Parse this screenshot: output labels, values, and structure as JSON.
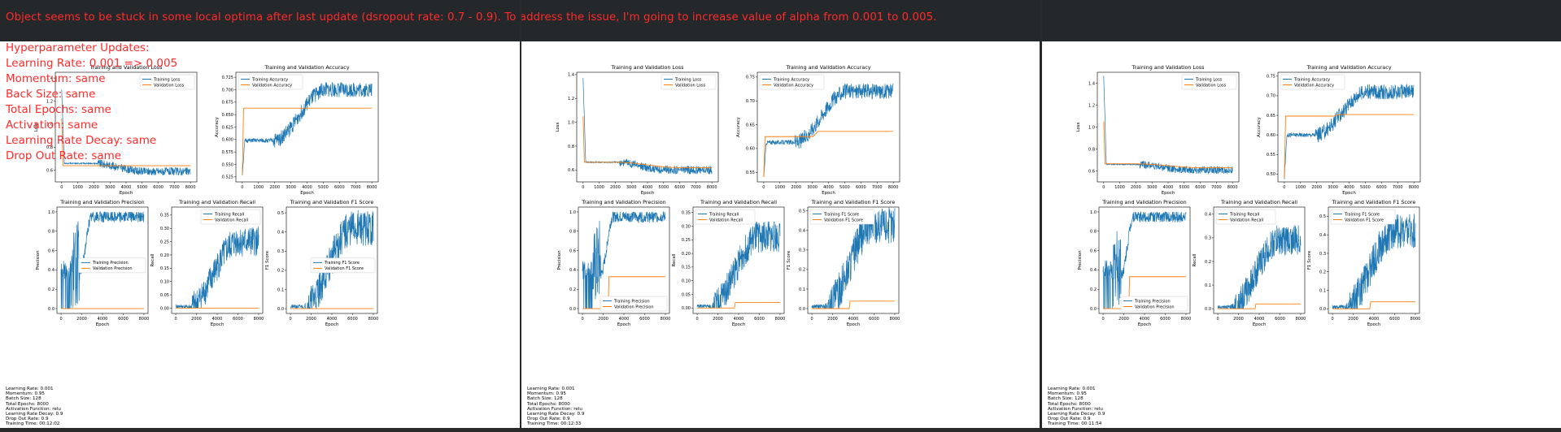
{
  "banner": "Object seems to be stuck in some local optima after last update (dsropout rate: 0.7 - 0.9). To address the issue, I'm going to increase value of alpha from 0.001 to 0.005.",
  "notes": [
    "Hyperparameter Updates:",
    "Learning Rate: 0.001 => 0.005",
    "Momentum: same",
    "Back Size: same",
    "Total Epochs: same",
    "Activation: same",
    "Learning Rate Decay: same",
    "Drop Out Rate: same"
  ],
  "colors": {
    "training": "#1f77b4",
    "validation": "#ff7f0e",
    "annotation": "#ff2a2a"
  },
  "panels": [
    {
      "info": [
        "Learning Rate: 0.001",
        "Momentum: 0.95",
        "Batch Size: 128",
        "Total Epochs: 8000",
        "Activation Function: relu",
        "Learning Rate Decay: 0.9",
        "Drop Out Rate: 0.9",
        "Training Time: 00:12:02"
      ],
      "charts": {
        "loss": {
          "title": "Training and Validation Loss",
          "xlabel": "Epoch",
          "ylabel": "Loss",
          "yticks": [
            "0.6",
            "0.8",
            "1.0",
            "1.2",
            "1.4"
          ],
          "xticks": [
            "0",
            "1000",
            "2000",
            "3000",
            "4000",
            "5000",
            "6000",
            "7000",
            "8000"
          ],
          "series": [
            "Training Loss",
            "Validation Loss"
          ],
          "val_start": 0.64,
          "val_end": 0.64,
          "tr_start": 1.3,
          "tr_plateau": 0.66,
          "tr_end": 0.59,
          "ylim": [
            0.5,
            1.45
          ],
          "legend": "upper right"
        },
        "accuracy": {
          "title": "Training and Validation Accuracy",
          "xlabel": "Epoch",
          "ylabel": "Accuracy",
          "yticks": [
            "0.525",
            "0.550",
            "0.575",
            "0.600",
            "0.625",
            "0.650",
            "0.675",
            "0.700",
            "0.725"
          ],
          "xticks": [
            "0",
            "1000",
            "2000",
            "3000",
            "4000",
            "5000",
            "6000",
            "7000",
            "8000"
          ],
          "series": [
            "Training Accuracy",
            "Validation Accuracy"
          ],
          "val_level": 0.663,
          "tr_start": 0.53,
          "tr_plateau": 0.598,
          "tr_end": 0.7,
          "ylim": [
            0.515,
            0.735
          ],
          "legend": "upper left"
        },
        "precision": {
          "title": "Training and Validation Precision",
          "xlabel": "Epoch",
          "ylabel": "Precision",
          "yticks": [
            "0.0",
            "0.2",
            "0.4",
            "0.6",
            "0.8",
            "1.0"
          ],
          "xticks": [
            "0",
            "2000",
            "4000",
            "6000",
            "8000"
          ],
          "series": [
            "Training Precision",
            "Validation Precision"
          ],
          "val_level": 0.0,
          "tr_end": 0.95,
          "ylim": [
            -0.05,
            1.05
          ],
          "legend": "center right"
        },
        "recall": {
          "title": "Training and Validation Recall",
          "xlabel": "Epoch",
          "ylabel": "Recall",
          "yticks": [
            "0.00",
            "0.05",
            "0.10",
            "0.15",
            "0.20",
            "0.25",
            "0.30",
            "0.35"
          ],
          "xticks": [
            "0",
            "2000",
            "4000",
            "6000",
            "8000"
          ],
          "series": [
            "Training Recall",
            "Validation Recall"
          ],
          "val_level": 0.0,
          "tr_end": 0.25,
          "ylim": [
            -0.02,
            0.38
          ],
          "legend": "upper right"
        },
        "f1": {
          "title": "Training and Validation F1 Score",
          "xlabel": "Epoch",
          "ylabel": "F1 Score",
          "yticks": [
            "0.0",
            "0.1",
            "0.2",
            "0.3",
            "0.4",
            "0.5"
          ],
          "xticks": [
            "0",
            "2000",
            "4000",
            "6000",
            "8000"
          ],
          "series": [
            "Training F1 Score",
            "Validation F1 Score"
          ],
          "val_level": 0.0,
          "tr_end": 0.42,
          "ylim": [
            -0.025,
            0.53
          ],
          "legend": "center right"
        }
      }
    },
    {
      "info": [
        "Learning Rate: 0.001",
        "Momentum: 0.95",
        "Batch Size: 128",
        "Total Epochs: 8000",
        "Activation Function: relu",
        "Learning Rate Decay: 0.9",
        "Drop Out Rate: 0.9",
        "Training Time: 00:12:33"
      ],
      "charts": {
        "loss": {
          "title": "Training and Validation Loss",
          "xlabel": "Epoch",
          "ylabel": "Loss",
          "yticks": [
            "0.6",
            "0.8",
            "1.0",
            "1.2",
            "1.4"
          ],
          "xticks": [
            "0",
            "1000",
            "2000",
            "3000",
            "4000",
            "5000",
            "6000",
            "7000",
            "8000"
          ],
          "series": [
            "Training Loss",
            "Validation Loss"
          ],
          "val_start": 0.665,
          "val_end": 0.62,
          "tr_start": 1.37,
          "tr_plateau": 0.665,
          "tr_end": 0.6,
          "ylim": [
            0.5,
            1.42
          ],
          "legend": "upper right"
        },
        "accuracy": {
          "title": "Training and Validation Accuracy",
          "xlabel": "Epoch",
          "ylabel": "Accuracy",
          "yticks": [
            "0.55",
            "0.60",
            "0.65",
            "0.70",
            "0.75"
          ],
          "xticks": [
            "0",
            "1000",
            "2000",
            "3000",
            "4000",
            "5000",
            "6000",
            "7000",
            "8000"
          ],
          "series": [
            "Training Accuracy",
            "Validation Accuracy"
          ],
          "val_level": 0.625,
          "val_step": 0.636,
          "tr_start": 0.54,
          "tr_plateau": 0.613,
          "tr_end": 0.72,
          "ylim": [
            0.53,
            0.76
          ],
          "legend": "upper left"
        },
        "precision": {
          "title": "Training and Validation Precision",
          "xlabel": "Epoch",
          "ylabel": "Precision",
          "yticks": [
            "0.0",
            "0.2",
            "0.4",
            "0.6",
            "0.8",
            "1.0"
          ],
          "xticks": [
            "0",
            "2000",
            "4000",
            "6000",
            "8000"
          ],
          "series": [
            "Training Precision",
            "Validation Precision"
          ],
          "val_level": 0.0,
          "val_step": 0.33,
          "tr_end": 0.95,
          "ylim": [
            -0.05,
            1.05
          ],
          "legend": "lower right"
        },
        "recall": {
          "title": "Training and Validation Recall",
          "xlabel": "Epoch",
          "ylabel": "Recall",
          "yticks": [
            "0.00",
            "0.05",
            "0.10",
            "0.15",
            "0.20",
            "0.25",
            "0.30",
            "0.35"
          ],
          "xticks": [
            "0",
            "2000",
            "4000",
            "6000",
            "8000"
          ],
          "series": [
            "Training Recall",
            "Validation Recall"
          ],
          "val_level": 0.0,
          "val_step": 0.02,
          "tr_end": 0.26,
          "ylim": [
            -0.02,
            0.37
          ],
          "legend": "upper left"
        },
        "f1": {
          "title": "Training and Validation F1 Score",
          "xlabel": "Epoch",
          "ylabel": "F1 Score",
          "yticks": [
            "0.0",
            "0.1",
            "0.2",
            "0.3",
            "0.4",
            "0.5"
          ],
          "xticks": [
            "0",
            "2000",
            "4000",
            "6000",
            "8000"
          ],
          "series": [
            "Training F1 Score",
            "Validation F1 Score"
          ],
          "val_level": 0.0,
          "val_step": 0.038,
          "tr_end": 0.43,
          "ylim": [
            -0.025,
            0.52
          ],
          "legend": "upper left"
        }
      }
    },
    {
      "info": [
        "Learning Rate: 0.001",
        "Momentum: 0.95",
        "Batch Size: 128",
        "Total Epochs: 8000",
        "Activation Function: relu",
        "Learning Rate Decay: 0.9",
        "Drop Out Rate: 0.9",
        "Training Time: 00:11:54"
      ],
      "charts": {
        "loss": {
          "title": "Training and Validation Loss",
          "xlabel": "Epoch",
          "ylabel": "Loss",
          "yticks": [
            "0.6",
            "0.8",
            "1.0",
            "1.2",
            "1.4"
          ],
          "xticks": [
            "0",
            "1000",
            "2000",
            "3000",
            "4000",
            "5000",
            "6000",
            "7000",
            "8000"
          ],
          "series": [
            "Training Loss",
            "Validation Loss"
          ],
          "val_start": 0.665,
          "val_end": 0.63,
          "tr_start": 1.47,
          "tr_plateau": 0.66,
          "tr_end": 0.61,
          "ylim": [
            0.5,
            1.5
          ],
          "legend": "upper right"
        },
        "accuracy": {
          "title": "Training and Validation Accuracy",
          "xlabel": "Epoch",
          "ylabel": "Accuracy",
          "yticks": [
            "0.50",
            "0.55",
            "0.60",
            "0.65",
            "0.70",
            "0.75"
          ],
          "xticks": [
            "0",
            "1000",
            "2000",
            "3000",
            "4000",
            "5000",
            "6000",
            "7000",
            "8000"
          ],
          "series": [
            "Training Accuracy",
            "Validation Accuracy"
          ],
          "val_level": 0.648,
          "val_step": 0.652,
          "tr_start": 0.49,
          "tr_plateau": 0.6,
          "tr_end": 0.71,
          "ylim": [
            0.48,
            0.76
          ],
          "legend": "upper left"
        },
        "precision": {
          "title": "Training and Validation Precision",
          "xlabel": "Epoch",
          "ylabel": "Precision",
          "yticks": [
            "0.0",
            "0.2",
            "0.4",
            "0.6",
            "0.8",
            "1.0"
          ],
          "xticks": [
            "0",
            "2000",
            "4000",
            "6000",
            "8000"
          ],
          "series": [
            "Training Precision",
            "Validation Precision"
          ],
          "val_level": 0.0,
          "val_step": 0.33,
          "tr_end": 0.95,
          "ylim": [
            -0.05,
            1.05
          ],
          "legend": "lower right"
        },
        "recall": {
          "title": "Training and Validation Recall",
          "xlabel": "Epoch",
          "ylabel": "Recall",
          "yticks": [
            "0.0",
            "0.1",
            "0.2",
            "0.3",
            "0.4"
          ],
          "xticks": [
            "0",
            "2000",
            "4000",
            "6000",
            "8000"
          ],
          "series": [
            "Training Recall",
            "Validation Recall"
          ],
          "val_level": 0.0,
          "val_step": 0.02,
          "tr_end": 0.29,
          "ylim": [
            -0.02,
            0.43
          ],
          "legend": "upper left"
        },
        "f1": {
          "title": "Training and Validation F1 Score",
          "xlabel": "Epoch",
          "ylabel": "F1 Score",
          "yticks": [
            "0.0",
            "0.1",
            "0.2",
            "0.3",
            "0.4",
            "0.5"
          ],
          "xticks": [
            "0",
            "2000",
            "4000",
            "6000",
            "8000"
          ],
          "series": [
            "Training F1 Score",
            "Validation F1 Score"
          ],
          "val_level": 0.0,
          "val_step": 0.038,
          "tr_end": 0.42,
          "ylim": [
            -0.025,
            0.55
          ],
          "legend": "upper left"
        }
      }
    }
  ]
}
